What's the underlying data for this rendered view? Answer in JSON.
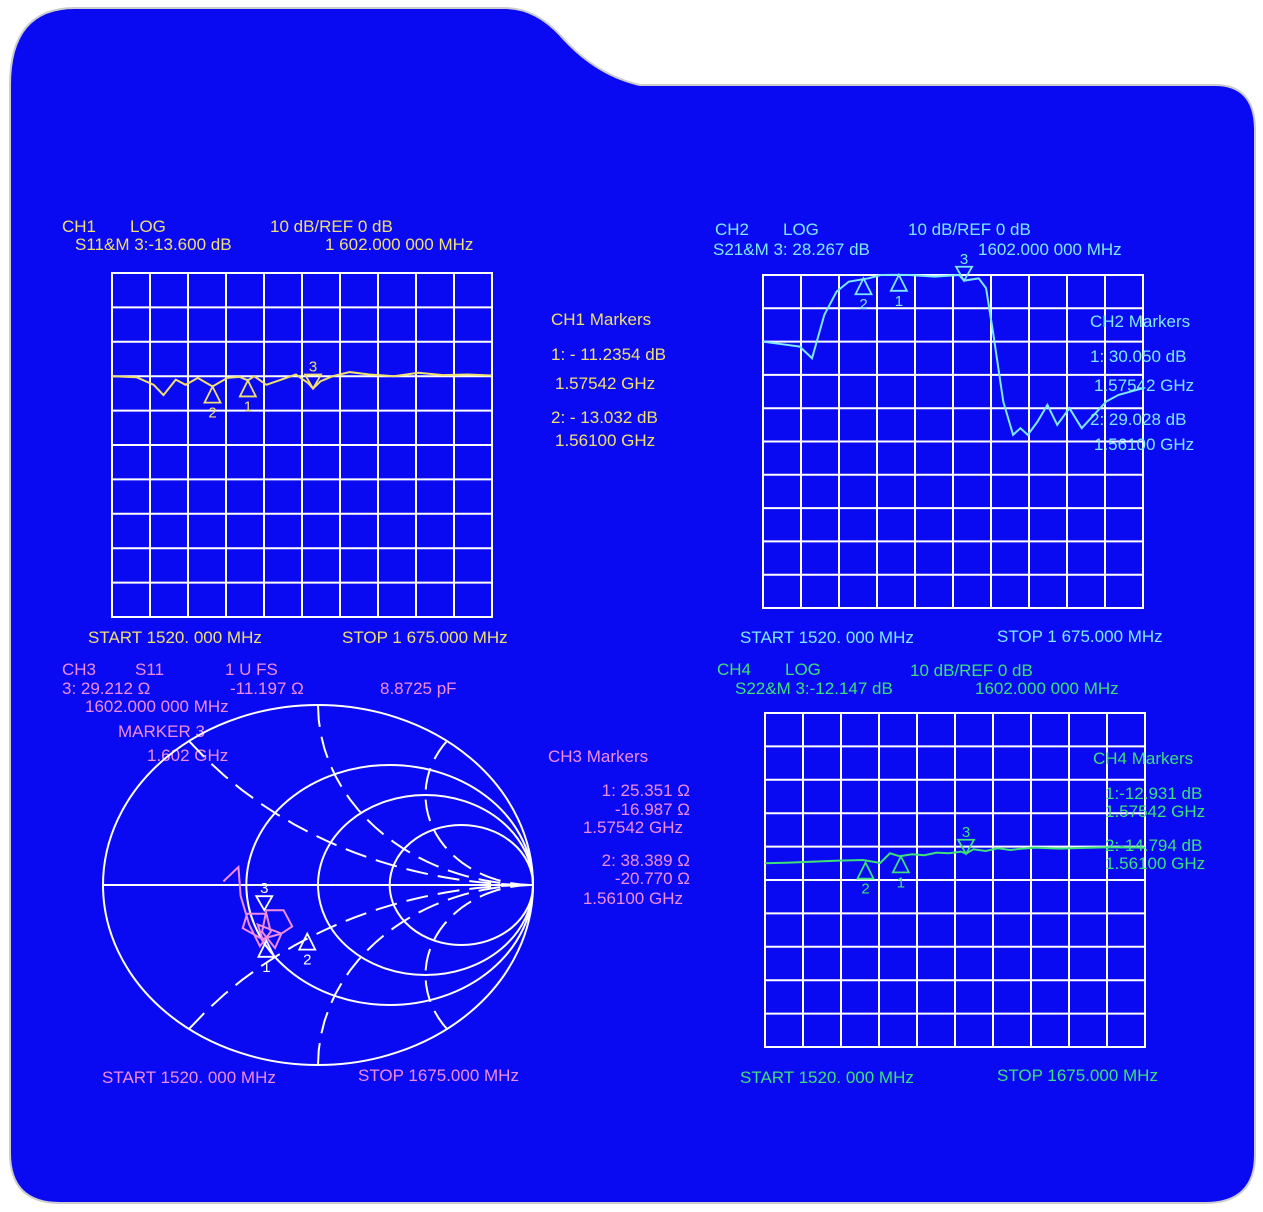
{
  "colors": {
    "background": "#0a0af2",
    "grid": "#ffffff",
    "ch1": "#f0e070",
    "ch2": "#7fe8ff",
    "ch3": "#f08ce0",
    "ch4": "#3ee07a"
  },
  "ch1": {
    "title": "CH1",
    "format": "LOG",
    "scale": "10   dB/REF   0  dB",
    "marker_line": "S11&M  3:-13.600 dB",
    "marker_freq": "1  602.000  000  MHz",
    "start": "START 1520. 000  MHz",
    "stop": "STOP 1 675.000  MHz",
    "markers_title": "CH1  Markers",
    "markers": [
      {
        "value": "1: - 11.2354  dB",
        "freq": "1.57542  GHz"
      },
      {
        "value": "2: - 13.032  dB",
        "freq": "1.56100  GHz"
      }
    ],
    "marker_labels": [
      "1",
      "2",
      "3"
    ]
  },
  "ch2": {
    "title": "CH2",
    "format": "LOG",
    "scale": "10   dB/REF   0  dB",
    "marker_line": "S21&M  3:  28.267  dB",
    "marker_freq": "1602.000  000  MHz",
    "start": "START 1520. 000  MHz",
    "stop": "STOP 1 675.000  MHz",
    "markers_title": "CH2  Markers",
    "markers": [
      {
        "value": "1: 30.050  dB",
        "freq": "1.57542  GHz"
      },
      {
        "value": "2: 29.028  dB",
        "freq": "1.56100  GHz"
      }
    ],
    "marker_labels": [
      "1",
      "2",
      "3"
    ]
  },
  "ch3": {
    "title": "CH3",
    "param": "S11",
    "format": "1  U  FS",
    "line2_r": "3: 29.212 Ω",
    "line2_x": "-11.197 Ω",
    "line2_c": "8.8725    pF",
    "marker_freq": "1602.000  000  MHz",
    "marker_name": "MARKER  3",
    "marker_ghz": "1.602  GHz",
    "start": "START 1520. 000  MHz",
    "stop": "STOP 1675.000  MHz",
    "markers_title": "CH3  Markers",
    "markers": [
      {
        "r": "1: 25.351  Ω",
        "x": "-16.987  Ω",
        "freq": "1.57542  GHz"
      },
      {
        "r": "2: 38.389  Ω",
        "x": "-20.770  Ω",
        "freq": "1.56100  GHz"
      }
    ],
    "marker_labels": [
      "1",
      "2",
      "3"
    ]
  },
  "ch4": {
    "title": "CH4",
    "format": "LOG",
    "scale": "10   dB/REF   0  dB",
    "marker_line": "S22&M  3:-12.147  dB",
    "marker_freq": "1602.000  000  MHz",
    "start": "START 1520. 000  MHz",
    "stop": "STOP 1675.000  MHz",
    "markers_title": "CH4  Markers",
    "markers": [
      {
        "value": "1:-12.931  dB",
        "freq": "1.57542  GHz"
      },
      {
        "value": "2:-14.794  dB",
        "freq": "1.56100  GHz"
      }
    ],
    "marker_labels": [
      "1",
      "2",
      "3"
    ]
  },
  "chart_data": [
    {
      "type": "line",
      "channel": "CH1",
      "title": "S11&M",
      "xlabel": "",
      "ylabel": "",
      "xlim": [
        1520,
        1675
      ],
      "ylim": [
        -80,
        20
      ],
      "grid": true,
      "series": [
        {
          "name": "S11",
          "x": [
            1520,
            1530,
            1537,
            1541,
            1546,
            1550,
            1555,
            1561,
            1567,
            1572,
            1575.4,
            1578,
            1583,
            1589,
            1595,
            1600,
            1602,
            1605,
            1610,
            1617,
            1625,
            1635,
            1645,
            1655,
            1665,
            1675
          ],
          "y": [
            -10.0,
            -10.3,
            -12.5,
            -15.5,
            -11.0,
            -12.5,
            -10.5,
            -13.0,
            -10.5,
            -10.2,
            -11.2,
            -10.0,
            -12.5,
            -11.0,
            -9.5,
            -12.0,
            -13.6,
            -11.5,
            -10.0,
            -8.8,
            -9.5,
            -10.0,
            -9.0,
            -9.7,
            -9.5,
            -9.8
          ]
        }
      ],
      "markers": [
        {
          "label": "1",
          "x": 1575.42,
          "y": -11.2354
        },
        {
          "label": "2",
          "x": 1561.0,
          "y": -13.032
        },
        {
          "label": "3",
          "x": 1602.0,
          "y": -13.6
        }
      ]
    },
    {
      "type": "line",
      "channel": "CH2",
      "title": "S21&M",
      "xlabel": "",
      "ylabel": "",
      "xlim": [
        1520,
        1675
      ],
      "ylim": [
        -70,
        30
      ],
      "grid": true,
      "series": [
        {
          "name": "S21",
          "x": [
            1520,
            1530,
            1535,
            1540,
            1545,
            1550,
            1555,
            1563,
            1568,
            1575.4,
            1580,
            1590,
            1600,
            1602,
            1608,
            1611,
            1614,
            1618,
            1622,
            1625,
            1628,
            1632,
            1636,
            1640,
            1645,
            1650,
            1655,
            1660,
            1665,
            1670,
            1675
          ],
          "y": [
            10,
            9,
            8.5,
            5,
            18,
            25,
            28,
            29,
            30,
            30.05,
            30,
            29.5,
            30,
            28.3,
            29,
            26,
            12,
            -8,
            -18,
            -16,
            -18,
            -14,
            -9,
            -15,
            -10,
            -16,
            -12,
            -8,
            -6,
            -5,
            -4
          ]
        }
      ],
      "markers": [
        {
          "label": "1",
          "x": 1575.42,
          "y": 30.05
        },
        {
          "label": "2",
          "x": 1561.0,
          "y": 29.028
        },
        {
          "label": "3",
          "x": 1602.0,
          "y": 28.267
        }
      ]
    },
    {
      "type": "scatter",
      "channel": "CH3",
      "title": "S11",
      "xlabel": "",
      "ylabel": "",
      "xlim": [
        -1,
        1
      ],
      "ylim": [
        -1,
        1
      ],
      "grid": true,
      "series": [
        {
          "name": "S11",
          "x": [
            -0.44,
            -0.37,
            -0.36,
            -0.32,
            -0.27,
            -0.22,
            -0.24,
            -0.33,
            -0.35,
            -0.26,
            -0.17,
            -0.12,
            -0.16,
            -0.24,
            -0.26,
            -0.2,
            -0.17,
            -0.28,
            -0.25
          ],
          "y": [
            0.02,
            0.1,
            -0.06,
            -0.22,
            -0.34,
            -0.26,
            -0.16,
            -0.16,
            -0.24,
            -0.3,
            -0.27,
            -0.23,
            -0.14,
            -0.14,
            -0.26,
            -0.35,
            -0.27,
            -0.22,
            -0.33
          ]
        }
      ],
      "markers": [
        {
          "label": "1",
          "r": 25.351,
          "x": -16.987
        },
        {
          "label": "2",
          "r": 38.389,
          "x": -20.77
        },
        {
          "label": "3",
          "r": 29.212,
          "x": -11.197
        }
      ]
    },
    {
      "type": "line",
      "channel": "CH4",
      "title": "S22&M",
      "xlabel": "",
      "ylabel": "",
      "xlim": [
        1520,
        1675
      ],
      "ylim": [
        -70,
        30
      ],
      "grid": true,
      "series": [
        {
          "name": "S22",
          "x": [
            1520,
            1530,
            1540,
            1550,
            1560,
            1567,
            1571,
            1575,
            1580,
            1585,
            1590,
            1595,
            1600,
            1602,
            1605,
            1610,
            1615,
            1620,
            1625,
            1630,
            1640,
            1650,
            1660,
            1675
          ],
          "y": [
            -15.0,
            -14.8,
            -14.5,
            -14.2,
            -14.0,
            -14.9,
            -12.0,
            -12.9,
            -12.3,
            -12.6,
            -11.8,
            -12.0,
            -11.5,
            -12.1,
            -10.8,
            -11.3,
            -10.5,
            -11.0,
            -10.6,
            -10.3,
            -10.6,
            -10.4,
            -10.2,
            -10.3
          ]
        }
      ],
      "markers": [
        {
          "label": "1",
          "x": 1575.42,
          "y": -12.931
        },
        {
          "label": "2",
          "x": 1561.0,
          "y": -14.794
        },
        {
          "label": "3",
          "x": 1602.0,
          "y": -12.147
        }
      ]
    }
  ]
}
